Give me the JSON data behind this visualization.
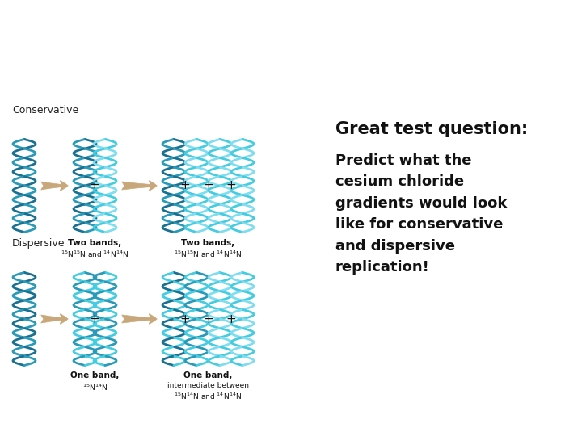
{
  "background_color": "#ffffff",
  "title_text": "Great test question:",
  "body_text": "Predict what the\ncesium chloride\ngradients would look\nlike for conservative\nand dispersive\nreplication!",
  "conservative_label": "Conservative",
  "dispersive_label": "Dispersive",
  "conservative_band1_line1": "Two bands,",
  "conservative_band1_line2": "$^{15}$N$^{15}$N and $^{14}$N$^{14}$N",
  "conservative_band2_line1": "Two bands,",
  "conservative_band2_line2": "$^{15}$N$^{15}$N and $^{14}$N$^{14}$N",
  "dispersive_band1_line1": "One band,",
  "dispersive_band1_line2": "$^{15}$N$^{14}$N",
  "dispersive_band2_line1": "One band,",
  "dispersive_band2_line2": "intermediate between",
  "dispersive_band2_line3": "$^{15}$N$^{14}$N and $^{14}$N$^{14}$N",
  "dark_teal": "#1a7090",
  "mid_teal": "#2a9ab8",
  "light_cyan": "#45cce0",
  "very_light_cyan": "#80ddf0",
  "arrow_color": "#c8a87a",
  "text_color": "#111111",
  "label_color": "#222222",
  "fig_width": 7.2,
  "fig_height": 5.4,
  "dpi": 100
}
